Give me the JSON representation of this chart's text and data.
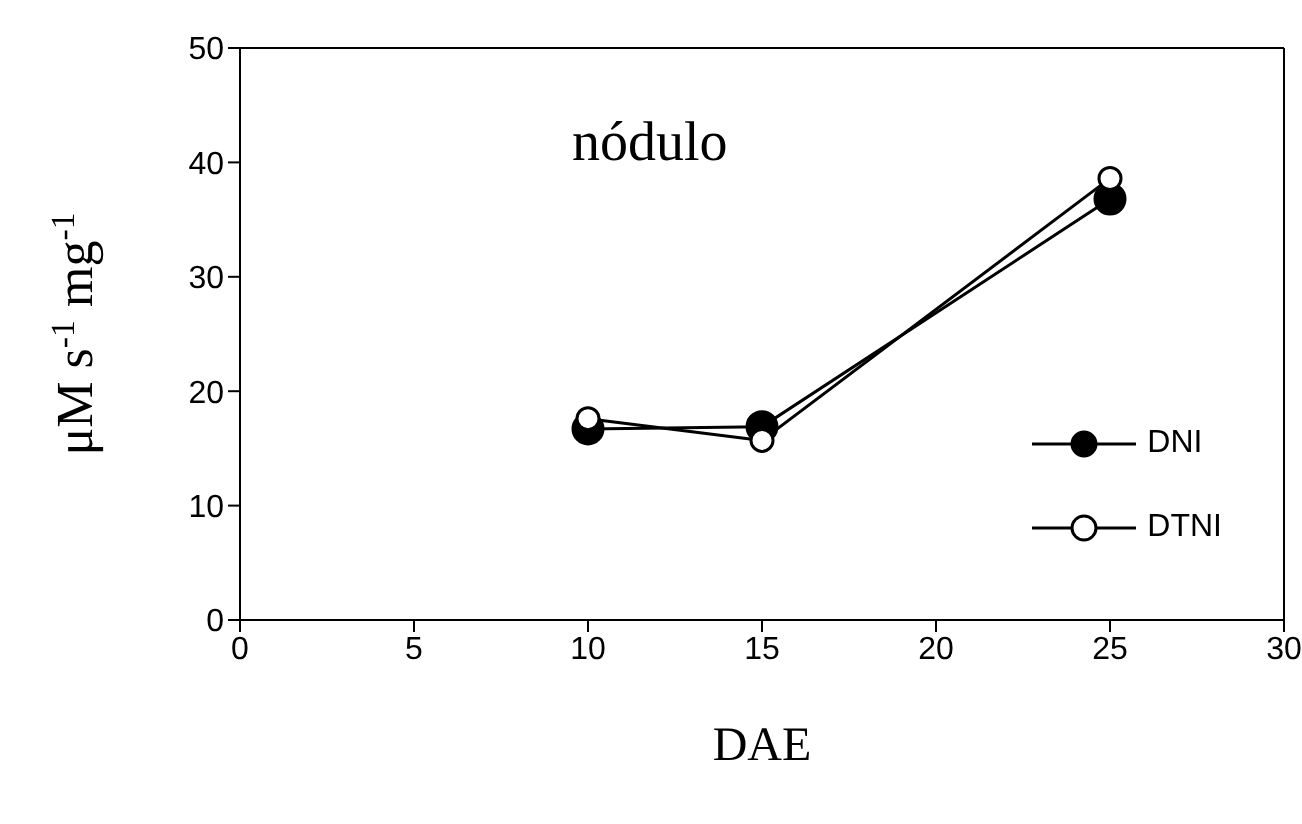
{
  "chart_data": {
    "type": "line",
    "xlabel": "DAE",
    "ylabel": "μM s$^{-1}$ mg$^{-1}$",
    "annotations": [
      "nódulo"
    ],
    "x": [
      10,
      15,
      25
    ],
    "series": [
      {
        "name": "DNI",
        "color": "#000000",
        "values": [
          16.7,
          16.9,
          36.8
        ]
      },
      {
        "name": "DTNI",
        "color": "#000000",
        "values": [
          17.6,
          15.7,
          38.6
        ]
      }
    ],
    "xlim": [
      0,
      30
    ],
    "xticks": [
      0,
      5,
      10,
      15,
      20,
      25,
      30
    ],
    "ylim": [
      0,
      50
    ],
    "yticks": [
      0,
      10,
      20,
      30,
      40,
      50
    ],
    "grid": false,
    "legend": "bottom right",
    "marker": "circle",
    "line_style": "solid"
  }
}
